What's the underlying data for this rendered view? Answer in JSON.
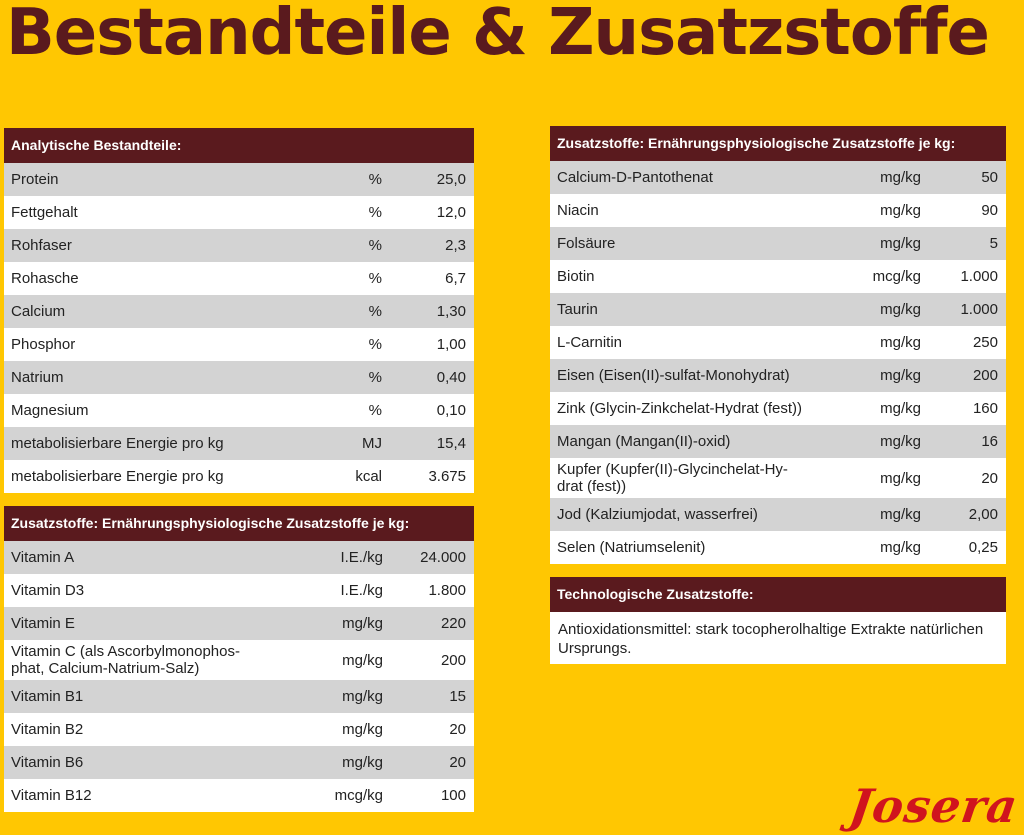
{
  "title": "Bestandteile & Zusatzstoffe",
  "logo_text": "Josera",
  "colors": {
    "background": "#ffc702",
    "header": "#5a1a1e",
    "row_alt": "#d3d3d3",
    "logo": "#d0141e"
  },
  "analytic": {
    "header": "Analytische Bestandteile:",
    "rows": [
      {
        "name": "Protein",
        "unit": "%",
        "value": "25,0"
      },
      {
        "name": "Fettgehalt",
        "unit": "%",
        "value": "12,0"
      },
      {
        "name": "Rohfaser",
        "unit": "%",
        "value": "2,3"
      },
      {
        "name": "Rohasche",
        "unit": "%",
        "value": "6,7"
      },
      {
        "name": "Calcium",
        "unit": "%",
        "value": "1,30"
      },
      {
        "name": "Phosphor",
        "unit": "%",
        "value": "1,00"
      },
      {
        "name": "Natrium",
        "unit": "%",
        "value": "0,40"
      },
      {
        "name": "Magnesium",
        "unit": "%",
        "value": "0,10"
      },
      {
        "name": "metabolisierbare Energie pro kg",
        "unit": "MJ",
        "value": "15,4"
      },
      {
        "name": "metabolisierbare Energie pro kg",
        "unit": "kcal",
        "value": "3.675"
      }
    ]
  },
  "vitamins": {
    "header": "Zusatzstoffe: Ernährungsphysiologische Zusatzstoffe je kg:",
    "rows": [
      {
        "name": "Vitamin A",
        "unit": "I.E./kg",
        "value": "24.000"
      },
      {
        "name": "Vitamin D3",
        "unit": "I.E./kg",
        "value": "1.800"
      },
      {
        "name": "Vitamin E",
        "unit": "mg/kg",
        "value": "220"
      },
      {
        "name": "Vitamin C (als Ascorbylmonophos-",
        "name2": "phat, Calcium-Natrium-Salz)",
        "unit": "mg/kg",
        "value": "200"
      },
      {
        "name": "Vitamin B1",
        "unit": "mg/kg",
        "value": "15"
      },
      {
        "name": "Vitamin B2",
        "unit": "mg/kg",
        "value": "20"
      },
      {
        "name": "Vitamin B6",
        "unit": "mg/kg",
        "value": "20"
      },
      {
        "name": "Vitamin B12",
        "unit": "mcg/kg",
        "value": "100"
      }
    ]
  },
  "minerals": {
    "header": "Zusatzstoffe: Ernährungsphysiologische Zusatzstoffe je kg:",
    "rows": [
      {
        "name": "Calcium-D-Pantothenat",
        "unit": "mg/kg",
        "value": "50"
      },
      {
        "name": "Niacin",
        "unit": "mg/kg",
        "value": "90"
      },
      {
        "name": "Folsäure",
        "unit": "mg/kg",
        "value": "5"
      },
      {
        "name": "Biotin",
        "unit": "mcg/kg",
        "value": "1.000"
      },
      {
        "name": "Taurin",
        "unit": "mg/kg",
        "value": "1.000"
      },
      {
        "name": "L-Carnitin",
        "unit": "mg/kg",
        "value": "250"
      },
      {
        "name": "Eisen (Eisen(II)-sulfat-Monohydrat)",
        "unit": "mg/kg",
        "value": "200"
      },
      {
        "name": "Zink (Glycin-Zinkchelat-Hydrat (fest))",
        "unit": "mg/kg",
        "value": "160"
      },
      {
        "name": "Mangan (Mangan(II)-oxid)",
        "unit": "mg/kg",
        "value": "16"
      },
      {
        "name": "Kupfer (Kupfer(II)-Glycinchelat-Hy-",
        "name2": "drat (fest))",
        "unit": "mg/kg",
        "value": "20"
      },
      {
        "name": "Jod (Kalziumjodat, wasserfrei)",
        "unit": "mg/kg",
        "value": "2,00"
      },
      {
        "name": "Selen (Natriumselenit)",
        "unit": "mg/kg",
        "value": "0,25"
      }
    ]
  },
  "technological": {
    "header": "Technologische Zusatzstoffe:",
    "text": "Antioxidationsmittel: stark tocopherolhaltige Extrakte natürlichen Ursprungs."
  }
}
